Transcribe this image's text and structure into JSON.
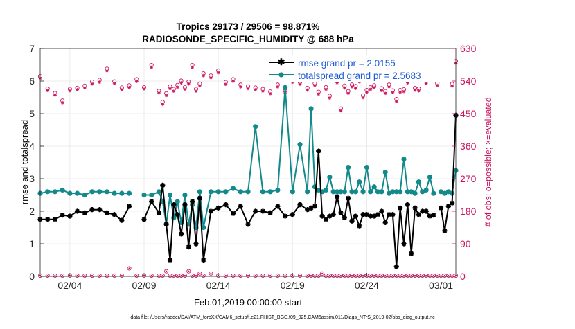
{
  "chart_data": {
    "type": "line",
    "title_line1": "Tropics 29173 / 29506 = 98.871%",
    "title_line2": "RADIOSONDE_SPECIFIC_HUMIDITY @ 688 hPa",
    "xlabel": "Feb.01,2019 00:00:00 start",
    "ylabel_left": "rmse and totalspread",
    "ylabel_right": "# of obs: o=possible; ×=evaluated",
    "footer": "data file: /Users/raeder/DAI/ATM_forcXX/CAM6_setup/f.e21.FHIST_BGC.f09_025.CAM6assim.011/Diags_NTrS_2019-02/obs_diag_output.nc",
    "xlim": [
      1,
      29
    ],
    "ylim_left": [
      0,
      7
    ],
    "ylim_right": [
      0,
      630
    ],
    "x_ticks": [
      3,
      8,
      13,
      18,
      23,
      28
    ],
    "x_tick_labels": [
      "02/04",
      "02/09",
      "02/14",
      "02/19",
      "02/24",
      "03/01"
    ],
    "y_ticks_left": [
      0,
      1,
      2,
      3,
      4,
      5,
      6,
      7
    ],
    "y_ticks_right": [
      0,
      90,
      180,
      270,
      360,
      450,
      540,
      630
    ],
    "colors": {
      "rmse": "#000000",
      "spread": "#12898a",
      "obs": "#cc1560",
      "legend_text": "#1f5cd6"
    },
    "legend": [
      {
        "name": "rmse",
        "label": "rmse grand pr = 2.0155"
      },
      {
        "name": "spread",
        "label": "totalspread grand pr = 2.5683"
      }
    ],
    "x": [
      1.0,
      1.5,
      2.0,
      2.5,
      3.0,
      3.5,
      4.0,
      4.5,
      5.0,
      5.5,
      6.0,
      6.5,
      7.0,
      7.5,
      8.0,
      8.5,
      9.0,
      9.25,
      9.5,
      9.75,
      10.0,
      10.25,
      10.5,
      10.75,
      11.0,
      11.25,
      11.5,
      11.75,
      12.0,
      12.5,
      13.0,
      13.5,
      14.0,
      14.5,
      15.0,
      15.5,
      16.0,
      16.5,
      17.0,
      17.5,
      18.0,
      18.5,
      19.0,
      19.25,
      19.5,
      19.75,
      20.0,
      20.25,
      20.5,
      20.75,
      21.0,
      21.25,
      21.5,
      21.75,
      22.0,
      22.25,
      22.5,
      22.75,
      23.0,
      23.25,
      23.5,
      23.75,
      24.0,
      24.25,
      24.5,
      24.75,
      25.0,
      25.25,
      25.5,
      25.75,
      26.0,
      26.25,
      26.5,
      26.75,
      27.0,
      27.25,
      27.5,
      27.75,
      28.0,
      28.25,
      28.5,
      28.75,
      29.0
    ],
    "series": [
      {
        "name": "rmse",
        "values": [
          1.75,
          1.75,
          1.75,
          1.88,
          1.85,
          2.0,
          1.95,
          2.05,
          2.05,
          1.95,
          1.9,
          1.72,
          2.15,
          null,
          1.75,
          2.3,
          1.95,
          2.8,
          1.6,
          0.5,
          2.2,
          1.9,
          1.3,
          2.2,
          0.9,
          2.3,
          1.0,
          2.4,
          0.5,
          2.0,
          2.1,
          2.2,
          1.93,
          2.15,
          1.6,
          2.0,
          2.0,
          1.95,
          2.15,
          1.85,
          1.9,
          2.2,
          2.05,
          2.1,
          2.15,
          3.85,
          1.85,
          1.75,
          1.85,
          1.9,
          2.45,
          1.95,
          1.8,
          2.4,
          1.7,
          1.85,
          1.55,
          1.9,
          1.9,
          1.85,
          1.85,
          1.9,
          2.0,
          1.65,
          1.9,
          1.9,
          0.3,
          2.1,
          1.0,
          2.2,
          0.7,
          2.1,
          1.9,
          2.0,
          2.0,
          1.85,
          1.88,
          null,
          2.1,
          1.4,
          2.15,
          2.25,
          4.95
        ]
      },
      {
        "name": "spread",
        "values": [
          2.55,
          2.6,
          2.6,
          2.65,
          2.55,
          2.55,
          2.5,
          2.6,
          2.6,
          2.6,
          2.55,
          2.55,
          2.55,
          null,
          2.5,
          2.5,
          2.6,
          2.3,
          1.6,
          2.5,
          1.8,
          2.3,
          1.65,
          2.5,
          1.6,
          2.2,
          1.5,
          2.6,
          1.5,
          2.6,
          2.6,
          2.6,
          2.7,
          2.6,
          2.6,
          4.6,
          2.6,
          2.6,
          2.65,
          5.8,
          2.6,
          4.05,
          2.6,
          5.15,
          2.75,
          2.65,
          2.6,
          2.65,
          3.05,
          2.6,
          2.6,
          2.6,
          2.6,
          3.35,
          2.6,
          2.6,
          2.9,
          2.6,
          3.35,
          2.6,
          2.75,
          2.6,
          2.6,
          3.2,
          2.55,
          2.6,
          2.6,
          2.6,
          3.6,
          2.6,
          2.6,
          2.55,
          2.9,
          2.6,
          2.65,
          3.05,
          2.55,
          null,
          2.6,
          2.55,
          2.6,
          2.55,
          3.25
        ]
      },
      {
        "name": "obs_possible",
        "values": [
          553,
          519,
          507,
          486,
          518,
          521,
          527,
          538,
          543,
          574,
          539,
          522,
          528,
          545,
          523,
          584,
          513,
          482,
          506,
          525,
          518,
          529,
          541,
          523,
          538,
          584,
          518,
          533,
          561,
          555,
          569,
          537,
          545,
          530,
          525,
          522,
          518,
          511,
          530,
          513,
          543,
          537,
          521,
          566,
          534,
          510,
          578,
          523,
          499,
          552,
          541,
          464,
          527,
          512,
          530,
          526,
          544,
          500,
          515,
          523,
          528,
          550,
          520,
          512,
          530,
          514,
          490,
          515,
          517,
          541,
          550,
          521,
          519,
          560,
          539,
          550,
          579,
          534,
          563,
          569,
          553,
          532,
          595
        ]
      },
      {
        "name": "obs_evaluated",
        "values": [
          548,
          514,
          501,
          480,
          513,
          516,
          521,
          532,
          537,
          568,
          533,
          516,
          522,
          539,
          518,
          578,
          507,
          476,
          500,
          519,
          512,
          523,
          535,
          517,
          532,
          578,
          512,
          527,
          555,
          549,
          563,
          531,
          539,
          524,
          519,
          516,
          512,
          505,
          524,
          507,
          537,
          531,
          515,
          560,
          528,
          504,
          572,
          517,
          493,
          546,
          535,
          458,
          521,
          506,
          524,
          520,
          538,
          494,
          509,
          517,
          522,
          544,
          514,
          506,
          524,
          508,
          484,
          509,
          511,
          535,
          544,
          515,
          513,
          554,
          533,
          544,
          573,
          528,
          557,
          563,
          547,
          526,
          589
        ]
      },
      {
        "name": "obs_possible_low",
        "values": [
          2,
          2,
          2,
          2,
          2,
          2,
          2,
          2,
          2,
          2,
          2,
          2,
          22,
          2,
          2,
          2,
          2,
          2,
          14,
          2,
          2,
          2,
          2,
          2,
          14,
          2,
          2,
          8,
          2,
          8,
          2,
          2,
          2,
          2,
          2,
          2,
          2,
          2,
          2,
          2,
          2,
          2,
          2,
          2,
          2,
          2,
          8,
          2,
          2,
          2,
          2,
          2,
          2,
          2,
          2,
          2,
          2,
          2,
          2,
          2,
          2,
          2,
          2,
          2,
          2,
          2,
          2,
          2,
          2,
          2,
          2,
          2,
          2,
          2,
          2,
          2,
          2,
          2,
          2,
          2,
          2,
          2,
          2
        ]
      }
    ]
  }
}
